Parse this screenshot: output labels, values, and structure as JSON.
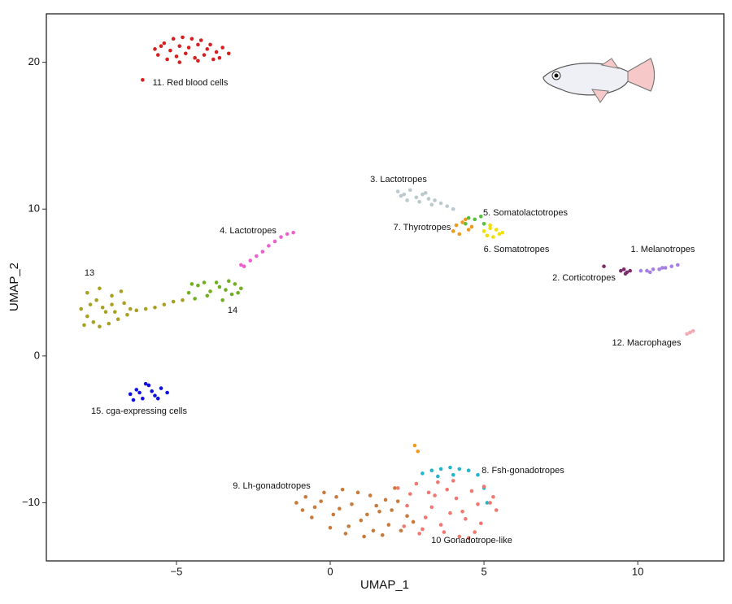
{
  "chart_data": {
    "type": "scatter",
    "x_label": "UMAP_1",
    "y_label": "UMAP_2",
    "xlim": [
      -9.23,
      12.8
    ],
    "ylim": [
      -13.96,
      23.3
    ],
    "xticks": [
      {
        "value": -5,
        "label": "−5"
      },
      0,
      5,
      10
    ],
    "yticks": [
      {
        "value": -10,
        "label": "−10"
      },
      0,
      10,
      20
    ],
    "series": [
      {
        "name": "1. Melanotropes",
        "color": "#a77fe5",
        "x": [
          10.1,
          10.3,
          10.5,
          10.7,
          10.9,
          11.1,
          11.3,
          10.4,
          10.8
        ],
        "y": [
          5.8,
          5.8,
          5.9,
          5.9,
          6.0,
          6.1,
          6.2,
          5.7,
          6.0
        ]
      },
      {
        "name": "2. Corticotropes",
        "color": "#7b2d6b",
        "x": [
          9.45,
          9.55,
          9.65,
          9.75,
          9.6,
          8.9
        ],
        "y": [
          5.8,
          5.9,
          5.7,
          5.8,
          5.6,
          6.1
        ]
      },
      {
        "name": "3. Lactotropes",
        "color": "#b9c9cc",
        "x": [
          2.2,
          2.4,
          2.6,
          2.8,
          3.0,
          3.2,
          3.4,
          3.6,
          3.8,
          4.0,
          2.5,
          2.9,
          3.3,
          2.3,
          3.1
        ],
        "y": [
          11.2,
          11.0,
          11.3,
          10.8,
          11.0,
          10.7,
          10.6,
          10.4,
          10.2,
          10.0,
          10.6,
          10.5,
          10.3,
          10.9,
          11.1
        ]
      },
      {
        "name": "4. Lactotropes",
        "color": "#ee5fd0",
        "x": [
          -2.8,
          -2.6,
          -2.4,
          -2.2,
          -2.0,
          -1.8,
          -1.6,
          -1.4,
          -1.2,
          -2.9
        ],
        "y": [
          6.1,
          6.5,
          6.8,
          7.1,
          7.5,
          7.8,
          8.1,
          8.3,
          8.4,
          6.2
        ]
      },
      {
        "name": "5. Somatolactotropes",
        "color": "#55c03a",
        "x": [
          4.5,
          4.7,
          4.9,
          5.0,
          4.4
        ],
        "y": [
          9.4,
          9.3,
          9.5,
          9.0,
          9.0
        ]
      },
      {
        "name": "6. Somatotropes",
        "color": "#f0e000",
        "x": [
          5.0,
          5.2,
          5.4,
          5.6,
          5.1,
          5.3,
          5.5,
          5.2
        ],
        "y": [
          8.5,
          8.7,
          8.6,
          8.4,
          8.2,
          8.1,
          8.3,
          8.9
        ]
      },
      {
        "name": "7. Thyrotropes",
        "color": "#f09a1a",
        "x": [
          4.1,
          4.3,
          4.5,
          4.2,
          4.6,
          4.4,
          4.0,
          2.75,
          2.85
        ],
        "y": [
          8.9,
          9.1,
          8.6,
          8.3,
          8.8,
          9.3,
          8.5,
          -6.1,
          -6.5
        ]
      },
      {
        "name": "8. Fsh-gonadotropes",
        "color": "#22b5cc",
        "x": [
          3.0,
          3.3,
          3.6,
          3.9,
          4.2,
          4.5,
          4.8,
          5.0,
          5.1,
          3.5,
          4.0
        ],
        "y": [
          -8.0,
          -7.8,
          -7.7,
          -7.6,
          -7.7,
          -7.8,
          -8.1,
          -9.0,
          -10.0,
          -8.2,
          -8.1
        ]
      },
      {
        "name": "9. Lh-gonadotropes",
        "color": "#c87a3a",
        "x": [
          -1.1,
          -0.8,
          -0.5,
          -0.2,
          0.1,
          0.4,
          0.7,
          1.0,
          1.3,
          1.6,
          1.9,
          2.2,
          2.5,
          -0.6,
          0,
          0.5,
          1.1,
          1.7,
          2.3,
          -0.3,
          0.3,
          0.9,
          1.5,
          2.1,
          2.7,
          0.6,
          1.2,
          1.8,
          -0.9,
          0.2,
          2.0,
          1.4
        ],
        "y": [
          -10,
          -9.6,
          -10.3,
          -9.3,
          -10.8,
          -9.1,
          -10.1,
          -11.2,
          -9.5,
          -10.6,
          -11.5,
          -9.9,
          -10.9,
          -11.0,
          -11.7,
          -12.1,
          -12.3,
          -12.2,
          -11.9,
          -9.9,
          -10.4,
          -9.3,
          -10.2,
          -9.0,
          -11.3,
          -11.6,
          -10.8,
          -9.8,
          -10.5,
          -9.6,
          -10.5,
          -11.9
        ]
      },
      {
        "name": "10 Gonadotrope-like",
        "color": "#f07870",
        "x": [
          2.2,
          2.5,
          2.8,
          3.1,
          3.4,
          3.7,
          4.0,
          4.3,
          4.6,
          4.9,
          5.2,
          5.4,
          2.4,
          2.9,
          3.3,
          3.8,
          4.2,
          4.7,
          5.0,
          2.6,
          3.0,
          3.5,
          3.9,
          4.4,
          4.8,
          3.2,
          3.6,
          4.1,
          4.5,
          5.3
        ],
        "y": [
          -9.0,
          -10.2,
          -8.7,
          -11.0,
          -9.5,
          -12.0,
          -8.5,
          -10.6,
          -9.2,
          -11.4,
          -10.0,
          -10.5,
          -11.6,
          -12.1,
          -10.3,
          -9.1,
          -12.3,
          -12.0,
          -8.9,
          -9.4,
          -11.8,
          -8.6,
          -10.7,
          -11.1,
          -10.1,
          -9.3,
          -11.5,
          -9.7,
          -12.4,
          -9.6
        ]
      },
      {
        "name": "11. Red blood cells",
        "color": "#d42020",
        "x": [
          -5.7,
          -5.4,
          -5.1,
          -4.8,
          -4.5,
          -4.2,
          -3.9,
          -3.5,
          -5.6,
          -5.2,
          -4.9,
          -4.6,
          -4.3,
          -4.0,
          -3.7,
          -3.3,
          -5.3,
          -5.0,
          -4.7,
          -4.4,
          -4.1,
          -3.8,
          -5.5,
          -4.9,
          -4.3,
          -3.6,
          -6.1
        ],
        "y": [
          20.9,
          21.3,
          21.6,
          21.7,
          21.6,
          21.5,
          21.2,
          21.0,
          20.5,
          20.8,
          21.1,
          21.0,
          21.2,
          20.9,
          20.7,
          20.6,
          20.2,
          20.4,
          20.6,
          20.3,
          20.5,
          20.2,
          21.1,
          20.0,
          20.1,
          20.3,
          18.8
        ]
      },
      {
        "name": "12. Macrophages",
        "color": "#f4a8b0",
        "x": [
          11.6,
          11.7,
          11.8
        ],
        "y": [
          1.5,
          1.6,
          1.7
        ]
      },
      {
        "name": "13",
        "color": "#a8a020",
        "x": [
          -8.1,
          -7.9,
          -7.7,
          -7.5,
          -7.3,
          -7.1,
          -6.9,
          -6.7,
          -6.5,
          -8.0,
          -7.6,
          -7.2,
          -6.8,
          -7.8,
          -7.4,
          -7.0,
          -6.6,
          -7.9,
          -7.5,
          -7.1,
          -6.3,
          -6.0,
          -5.7,
          -5.4,
          -5.1,
          -4.8
        ],
        "y": [
          3.2,
          4.3,
          2.3,
          4.6,
          3.0,
          4.1,
          2.5,
          3.6,
          3.2,
          2.1,
          3.8,
          2.2,
          4.4,
          3.5,
          3.3,
          3.0,
          2.8,
          2.7,
          2.0,
          3.5,
          3.1,
          3.2,
          3.3,
          3.5,
          3.7,
          3.8
        ]
      },
      {
        "name": "14",
        "color": "#70b020",
        "x": [
          -4.6,
          -4.3,
          -4.0,
          -3.7,
          -3.4,
          -3.1,
          -2.9,
          -4.4,
          -3.9,
          -3.5,
          -3.2,
          -4.1,
          -3.6,
          -3.0,
          -4.5,
          -3.3
        ],
        "y": [
          4.3,
          4.8,
          4.1,
          5.0,
          4.5,
          4.9,
          4.6,
          3.9,
          4.4,
          3.8,
          4.2,
          5.0,
          4.7,
          4.3,
          4.9,
          5.1
        ]
      },
      {
        "name": "15. cga-expressing cells",
        "color": "#1010e0",
        "x": [
          -6.5,
          -6.3,
          -6.1,
          -5.9,
          -5.7,
          -5.5,
          -5.3,
          -6.4,
          -6.0,
          -5.6,
          -6.2,
          -5.8
        ],
        "y": [
          -2.6,
          -2.3,
          -2.9,
          -2.0,
          -2.7,
          -2.2,
          -2.5,
          -3.0,
          -1.9,
          -2.9,
          -2.5,
          -2.4
        ]
      }
    ]
  }
}
